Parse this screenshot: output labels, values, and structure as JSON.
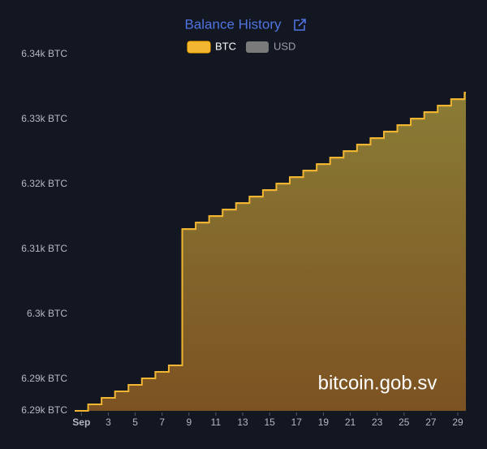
{
  "chart_data": {
    "type": "step-area",
    "title": "Balance History",
    "x": [
      0.5,
      1.5,
      2.5,
      3.5,
      4.5,
      5.5,
      6.5,
      7.5,
      8.5,
      9.5,
      10.5,
      11.5,
      12.5,
      13.5,
      14.5,
      15.5,
      16.5,
      17.5,
      18.5,
      19.5,
      20.5,
      21.5,
      22.5,
      23.5,
      24.5,
      25.5,
      26.5,
      27.5,
      28.5,
      29.5
    ],
    "series": [
      {
        "name": "BTC",
        "color": "#f2b632",
        "values": [
          6285.1,
          6286.1,
          6287.1,
          6288.1,
          6289.1,
          6290.1,
          6291.1,
          6292.1,
          6313.1,
          6314.1,
          6315.1,
          6316.1,
          6317.1,
          6318.1,
          6319.1,
          6320.1,
          6321.1,
          6322.1,
          6323.1,
          6324.1,
          6325.1,
          6326.1,
          6327.1,
          6328.1,
          6329.1,
          6330.1,
          6331.1,
          6332.1,
          6333.1,
          6334.1
        ]
      },
      {
        "name": "USD",
        "color": "#7a7a7a",
        "hidden": true
      }
    ],
    "xlim": [
      0.5,
      29.6
    ],
    "xticks": [
      {
        "value": 1,
        "label": "Sep"
      },
      3,
      5,
      7,
      9,
      11,
      13,
      15,
      17,
      19,
      21,
      23,
      25,
      27,
      29
    ],
    "ylim": [
      6285.1,
      6340
    ],
    "yticks": [
      {
        "value": 6285.1,
        "label": "6.29k BTC"
      },
      {
        "value": 6290,
        "label": "6.29k BTC"
      },
      {
        "value": 6300,
        "label": "6.3k BTC"
      },
      {
        "value": 6310,
        "label": "6.31k BTC"
      },
      {
        "value": 6320,
        "label": "6.32k BTC"
      },
      {
        "value": 6330,
        "label": "6.33k BTC"
      },
      {
        "value": 6340,
        "label": "6.34k BTC"
      }
    ],
    "annotation": "bitcoin.gob.sv"
  }
}
